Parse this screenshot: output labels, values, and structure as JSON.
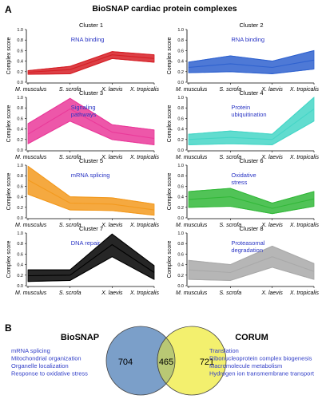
{
  "panel_a": {
    "letter": "A",
    "title": "BioSNAP cardiac protein complexes"
  },
  "panel_b": {
    "letter": "B",
    "left_title": "BioSNAP",
    "right_title": "CORUM",
    "left_count": "704",
    "overlap_count": "465",
    "right_count": "721",
    "left_terms": [
      "mRNA splicing",
      "Mitochondrial organization",
      "Organelle localization",
      "Response to oxidative stress"
    ],
    "right_terms": [
      "Translation",
      "Ribonucleoprotein complex biogenesis",
      "Macromolecule metabolism",
      "Hydrogen ion transmembrane transport"
    ],
    "left_color": "#7b9fc9",
    "right_color": "#f3f06e",
    "overlap_color": "#b9c874",
    "term_color": "#3340c8"
  },
  "chart_data": [
    {
      "type": "area",
      "title": "Cluster 1",
      "ylabel": "Complex score",
      "categories": [
        "M. musculus",
        "S. scrofa",
        "X. laevis",
        "X. tropicalis"
      ],
      "ylim": [
        0.0,
        1.0
      ],
      "yticks": [
        "0.0",
        "0.2",
        "0.4",
        "0.6",
        "0.8",
        "1.0"
      ],
      "annotation": "RNA binding",
      "color": "#d61f26",
      "series": [
        {
          "values": [
            0.22,
            0.3,
            0.58,
            0.52
          ]
        },
        {
          "values": [
            0.15,
            0.16,
            0.45,
            0.38
          ]
        },
        {
          "values": [
            0.19,
            0.24,
            0.52,
            0.45
          ]
        }
      ]
    },
    {
      "type": "area",
      "title": "Cluster 2",
      "ylabel": "Complex score",
      "categories": [
        "M. musculus",
        "S. scrofa",
        "X. laevis",
        "X. tropicalis"
      ],
      "ylim": [
        0.0,
        1.0
      ],
      "yticks": [
        "0.0",
        "0.2",
        "0.4",
        "0.6",
        "0.8",
        "1.0"
      ],
      "annotation": "RNA binding",
      "color": "#2f62cf",
      "series": [
        {
          "values": [
            0.38,
            0.5,
            0.4,
            0.6
          ]
        },
        {
          "values": [
            0.18,
            0.2,
            0.16,
            0.25
          ]
        },
        {
          "values": [
            0.28,
            0.35,
            0.28,
            0.42
          ]
        }
      ]
    },
    {
      "type": "area",
      "title": "Cluster 3",
      "ylabel": "Complex score",
      "categories": [
        "M. musculus",
        "S. scrofa",
        "X. laevis",
        "X. tropicalis"
      ],
      "ylim": [
        0.0,
        1.0
      ],
      "yticks": [
        "0.0",
        "0.2",
        "0.4",
        "0.6",
        "0.8",
        "1.0"
      ],
      "annotation": "Signaling pathways",
      "color": "#ea3a9a",
      "series": [
        {
          "values": [
            0.5,
            0.98,
            0.48,
            0.38
          ]
        },
        {
          "values": [
            0.12,
            0.55,
            0.2,
            0.1
          ]
        },
        {
          "values": [
            0.3,
            0.78,
            0.34,
            0.22
          ]
        }
      ]
    },
    {
      "type": "area",
      "title": "Cluster 4",
      "ylabel": "Complex score",
      "categories": [
        "M. musculus",
        "S. scrofa",
        "X. laevis",
        "X. tropicalis"
      ],
      "ylim": [
        0.0,
        1.0
      ],
      "yticks": [
        "0.0",
        "0.2",
        "0.4",
        "0.6",
        "0.8",
        "1.0"
      ],
      "annotation": "Protein ubiquitination",
      "color": "#45d6c7",
      "series": [
        {
          "values": [
            0.3,
            0.36,
            0.3,
            1.0
          ]
        },
        {
          "values": [
            0.1,
            0.12,
            0.1,
            0.55
          ]
        },
        {
          "values": [
            0.2,
            0.24,
            0.2,
            0.78
          ]
        }
      ]
    },
    {
      "type": "area",
      "title": "Cluster 5",
      "ylabel": "Complex score",
      "categories": [
        "M. musculus",
        "S. scrofa",
        "X. laevis",
        "X. tropicalis"
      ],
      "ylim": [
        0.0,
        1.0
      ],
      "yticks": [
        "0.0",
        "0.2",
        "0.4",
        "0.6",
        "0.8",
        "1.0"
      ],
      "annotation": "mRNA splicing",
      "color": "#f39a1f",
      "series": [
        {
          "values": [
            0.98,
            0.4,
            0.38,
            0.26
          ]
        },
        {
          "values": [
            0.45,
            0.15,
            0.14,
            0.05
          ]
        },
        {
          "values": [
            0.72,
            0.28,
            0.26,
            0.15
          ]
        }
      ]
    },
    {
      "type": "area",
      "title": "Cluster 6",
      "ylabel": "Complex score",
      "categories": [
        "M. musculus",
        "S. scrofa",
        "X. laevis",
        "X. tropicalis"
      ],
      "ylim": [
        0.0,
        1.0
      ],
      "yticks": [
        "0.0",
        "0.2",
        "0.4",
        "0.6",
        "0.8",
        "1.0"
      ],
      "annotation": "Oxidative stress",
      "color": "#33b83a",
      "series": [
        {
          "values": [
            0.5,
            0.56,
            0.28,
            0.5
          ]
        },
        {
          "values": [
            0.2,
            0.22,
            0.08,
            0.22
          ]
        },
        {
          "values": [
            0.35,
            0.4,
            0.18,
            0.36
          ]
        }
      ]
    },
    {
      "type": "area",
      "title": "Cluster 7",
      "ylabel": "Complex score",
      "categories": [
        "M. musculus",
        "S. scrofa",
        "X. laevis",
        "X. tropicalis"
      ],
      "ylim": [
        0.0,
        1.0
      ],
      "yticks": [
        "0.0",
        "0.2",
        "0.4",
        "0.6",
        "0.8",
        "1.0"
      ],
      "annotation": "DNA repair",
      "color": "#000000",
      "series": [
        {
          "values": [
            0.3,
            0.3,
            0.98,
            0.38
          ]
        },
        {
          "values": [
            0.08,
            0.1,
            0.55,
            0.12
          ]
        },
        {
          "values": [
            0.19,
            0.2,
            0.78,
            0.25
          ]
        }
      ]
    },
    {
      "type": "area",
      "title": "Cluster 8",
      "ylabel": "Complex score",
      "categories": [
        "M. musculus",
        "S. scrofa",
        "X. laevis",
        "X. tropicalis"
      ],
      "ylim": [
        0.0,
        1.0
      ],
      "yticks": [
        "0.0",
        "0.2",
        "0.4",
        "0.6",
        "0.8",
        "1.0"
      ],
      "annotation": "Proteasomal degradation",
      "color": "#a9a9a9",
      "series": [
        {
          "values": [
            0.48,
            0.4,
            0.75,
            0.42
          ]
        },
        {
          "values": [
            0.12,
            0.1,
            0.35,
            0.12
          ]
        },
        {
          "values": [
            0.3,
            0.25,
            0.55,
            0.27
          ]
        }
      ]
    }
  ]
}
